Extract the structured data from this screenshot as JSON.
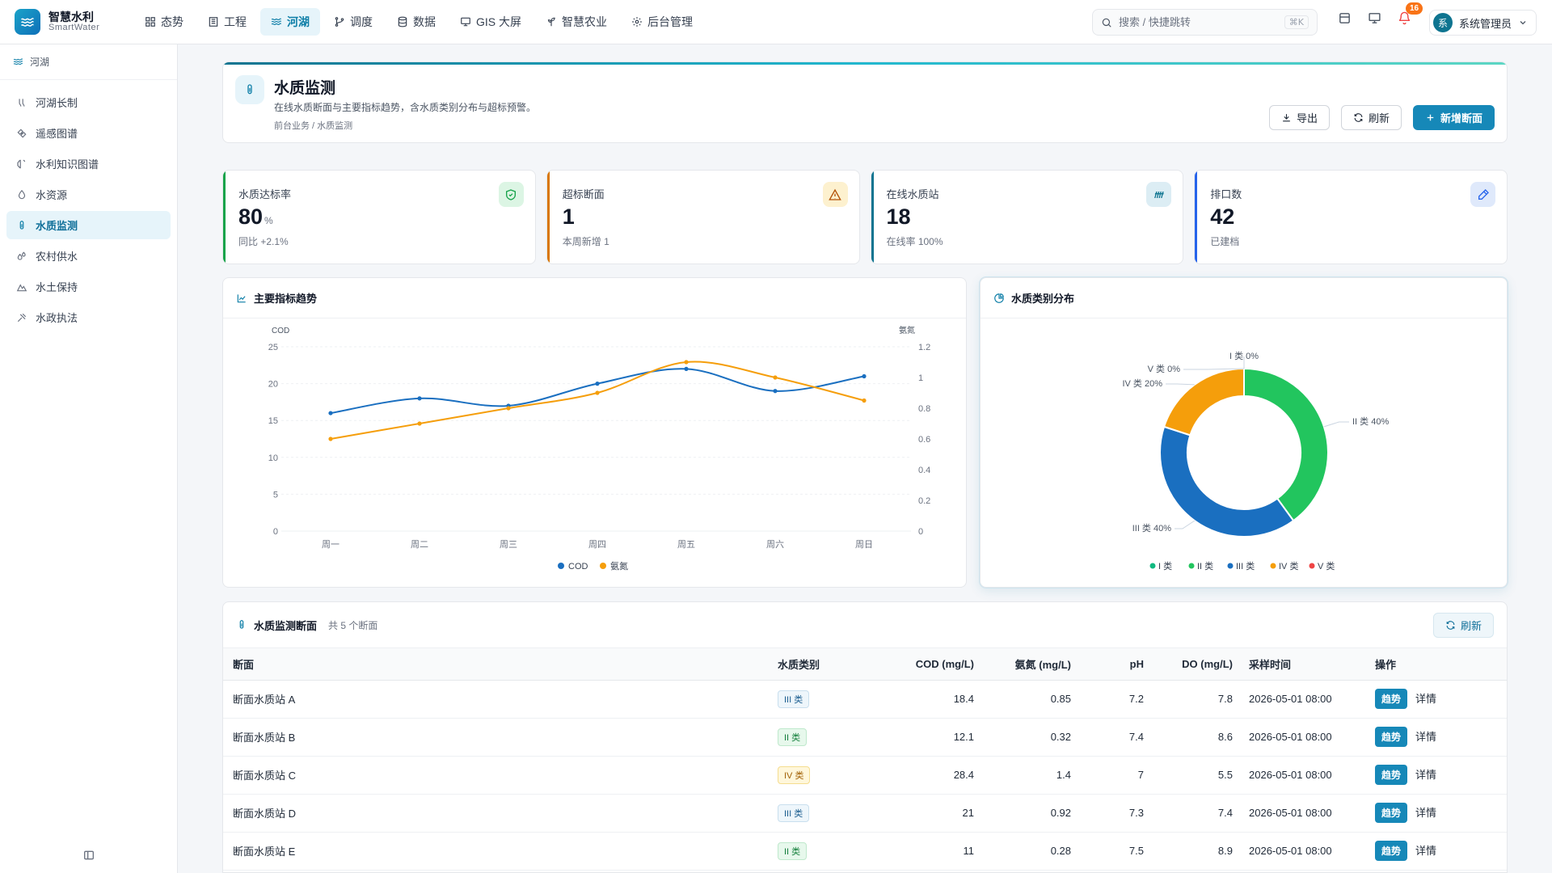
{
  "app": {
    "title": "智慧水利",
    "subtitle": "SmartWater"
  },
  "nav": [
    {
      "label": "态势",
      "icon": "grid-icon"
    },
    {
      "label": "工程",
      "icon": "building-icon"
    },
    {
      "label": "河湖",
      "icon": "waves-icon",
      "active": true
    },
    {
      "label": "调度",
      "icon": "branch-icon"
    },
    {
      "label": "数据",
      "icon": "database-icon"
    },
    {
      "label": "GIS 大屏",
      "icon": "monitor-icon"
    },
    {
      "label": "智慧农业",
      "icon": "sprout-icon"
    },
    {
      "label": "后台管理",
      "icon": "gear-icon"
    }
  ],
  "search": {
    "placeholder": "搜索 / 快捷跳转",
    "shortcut": "⌘K"
  },
  "notifications": {
    "count": "16"
  },
  "user": {
    "avatar_text": "系",
    "name": "系统管理员"
  },
  "sidebar": {
    "section": "河湖",
    "items": [
      {
        "label": "河湖长制",
        "icon": "people-icon"
      },
      {
        "label": "遥感图谱",
        "icon": "satellite-icon"
      },
      {
        "label": "水利知识图谱",
        "icon": "brain-icon"
      },
      {
        "label": "水资源",
        "icon": "droplet-icon"
      },
      {
        "label": "水质监测",
        "icon": "thermometer-icon",
        "active": true
      },
      {
        "label": "农村供水",
        "icon": "drops-icon"
      },
      {
        "label": "水土保持",
        "icon": "mountain-icon"
      },
      {
        "label": "水政执法",
        "icon": "gavel-icon"
      }
    ]
  },
  "page": {
    "title": "水质监测",
    "description": "在线水质断面与主要指标趋势，含水质类别分布与超标预警。",
    "breadcrumb": "前台业务 / 水质监测",
    "actions": {
      "export": "导出",
      "refresh": "刷新",
      "add": "新增断面"
    }
  },
  "stats": [
    {
      "label": "水质达标率",
      "value": "80",
      "unit": "%",
      "note": "同比 +2.1%",
      "color": "#16a34a",
      "icon": "shield-check-icon"
    },
    {
      "label": "超标断面",
      "value": "1",
      "unit": "",
      "note": "本周新增 1",
      "color": "#d97706",
      "icon": "warning-icon"
    },
    {
      "label": "在线水质站",
      "value": "18",
      "unit": "",
      "note": "在线率 100%",
      "color": "#0e7490",
      "icon": "signal-icon"
    },
    {
      "label": "排口数",
      "value": "42",
      "unit": "",
      "note": "已建档",
      "color": "#2563eb",
      "icon": "pipette-icon"
    }
  ],
  "trend": {
    "title": "主要指标趋势",
    "chart_data": {
      "type": "line",
      "categories": [
        "周一",
        "周二",
        "周三",
        "周四",
        "周五",
        "周六",
        "周日"
      ],
      "series": [
        {
          "name": "COD",
          "values": [
            16,
            18,
            17,
            20,
            22,
            19,
            21
          ],
          "color": "#1a6fc0",
          "axis": "left"
        },
        {
          "name": "氨氮",
          "values": [
            0.6,
            0.7,
            0.8,
            0.9,
            1.1,
            1.0,
            0.85
          ],
          "color": "#f59e0b",
          "axis": "right"
        }
      ],
      "y_left": {
        "label": "COD",
        "ticks": [
          0,
          5,
          10,
          15,
          20,
          25
        ],
        "range": [
          0,
          25
        ]
      },
      "y_right": {
        "label": "氨氮",
        "ticks": [
          "0",
          "0.2",
          "0.4",
          "0.6",
          "0.8",
          "1",
          "1.2"
        ],
        "range": [
          0,
          1.2
        ]
      },
      "smooth": true,
      "legend": "bottom"
    }
  },
  "distribution": {
    "title": "水质类别分布",
    "chart_data": {
      "type": "pie",
      "donut": true,
      "categories": [
        "I 类",
        "II 类",
        "III 类",
        "IV 类",
        "V 类"
      ],
      "values": [
        0,
        40,
        40,
        20,
        0
      ],
      "labels": [
        "I 类 0%",
        "II 类 40%",
        "III 类 40%",
        "IV 类 20%",
        "V 类 0%"
      ],
      "colors": [
        "#10b981",
        "#22c55e",
        "#1a6fc0",
        "#f59e0b",
        "#ef4444"
      ],
      "legend": "bottom"
    }
  },
  "table": {
    "title": "水质监测断面",
    "count": "共 5 个断面",
    "refresh": "刷新",
    "columns": [
      "断面",
      "水质类别",
      "COD (mg/L)",
      "氨氮 (mg/L)",
      "pH",
      "DO (mg/L)",
      "采样时间",
      "操作"
    ],
    "trend_action": "趋势",
    "detail_action": "详情",
    "rows": [
      {
        "name": "断面水质站 A",
        "class": "III 类",
        "cls": "c3",
        "cod": "18.4",
        "nh": "0.85",
        "ph": "7.2",
        "do": "7.8",
        "time": "2026-05-01 08:00"
      },
      {
        "name": "断面水质站 B",
        "class": "II 类",
        "cls": "c2",
        "cod": "12.1",
        "nh": "0.32",
        "ph": "7.4",
        "do": "8.6",
        "time": "2026-05-01 08:00"
      },
      {
        "name": "断面水质站 C",
        "class": "IV 类",
        "cls": "c4",
        "cod": "28.4",
        "nh": "1.4",
        "ph": "7",
        "do": "5.5",
        "time": "2026-05-01 08:00"
      },
      {
        "name": "断面水质站 D",
        "class": "III 类",
        "cls": "c3",
        "cod": "21",
        "nh": "0.92",
        "ph": "7.3",
        "do": "7.4",
        "time": "2026-05-01 08:00"
      },
      {
        "name": "断面水质站 E",
        "class": "II 类",
        "cls": "c2",
        "cod": "11",
        "nh": "0.28",
        "ph": "7.5",
        "do": "8.9",
        "time": "2026-05-01 08:00"
      }
    ]
  }
}
